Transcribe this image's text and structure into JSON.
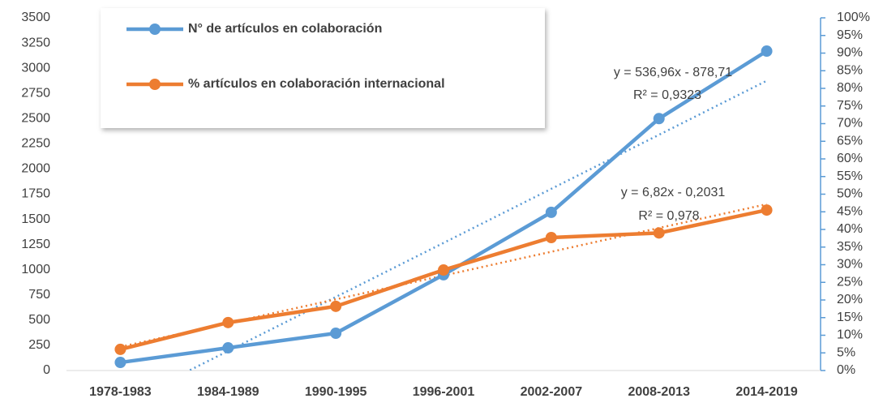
{
  "chart_data": {
    "type": "line",
    "categories": [
      "1978-1983",
      "1984-1989",
      "1990-1995",
      "1996-2001",
      "2002-2007",
      "2008-2013",
      "2014-2019"
    ],
    "series": [
      {
        "name": "N°  de artículos en colaboración",
        "color": "#5b9bd5",
        "values": [
          80,
          225,
          370,
          950,
          1570,
          2500,
          3170
        ]
      },
      {
        "name": "% artículos en colaboración internacional",
        "color": "#ed7d31",
        "axis": "y2",
        "values": [
          6,
          13.6,
          18.2,
          28.5,
          37.7,
          39,
          45.5
        ]
      }
    ],
    "ylim": [
      0,
      3500
    ],
    "yticks": [
      0,
      250,
      500,
      750,
      1000,
      1250,
      1500,
      1750,
      2000,
      2250,
      2500,
      2750,
      3000,
      3250,
      3500
    ],
    "y2lim": [
      0,
      100
    ],
    "y2ticks": [
      {
        "value": 0,
        "label": "0%"
      },
      {
        "value": 5,
        "label": "5%"
      },
      {
        "value": 10,
        "label": "10%"
      },
      {
        "value": 15,
        "label": "15%"
      },
      {
        "value": 20,
        "label": "20%"
      },
      {
        "value": 25,
        "label": "25%"
      },
      {
        "value": 30,
        "label": "30%"
      },
      {
        "value": 35,
        "label": "35%"
      },
      {
        "value": 40,
        "label": "40%"
      },
      {
        "value": 45,
        "label": "45%"
      },
      {
        "value": 50,
        "label": "50%"
      },
      {
        "value": 55,
        "label": "55%"
      },
      {
        "value": 60,
        "label": "60%"
      },
      {
        "value": 65,
        "label": "65%"
      },
      {
        "value": 70,
        "label": "70%"
      },
      {
        "value": 75,
        "label": "75%"
      },
      {
        "value": 80,
        "label": "80%"
      },
      {
        "value": 85,
        "label": "85%"
      },
      {
        "value": 90,
        "label": "90%"
      },
      {
        "value": 95,
        "label": "95%"
      },
      {
        "value": 100,
        "label": "100%"
      }
    ],
    "trendline": true,
    "legend": "top-left",
    "annotations": [
      "y = 536,96x - 878,71",
      "R² = 0,9323",
      "y = 6,82x - 0,2031",
      "R² = 0,978"
    ]
  }
}
